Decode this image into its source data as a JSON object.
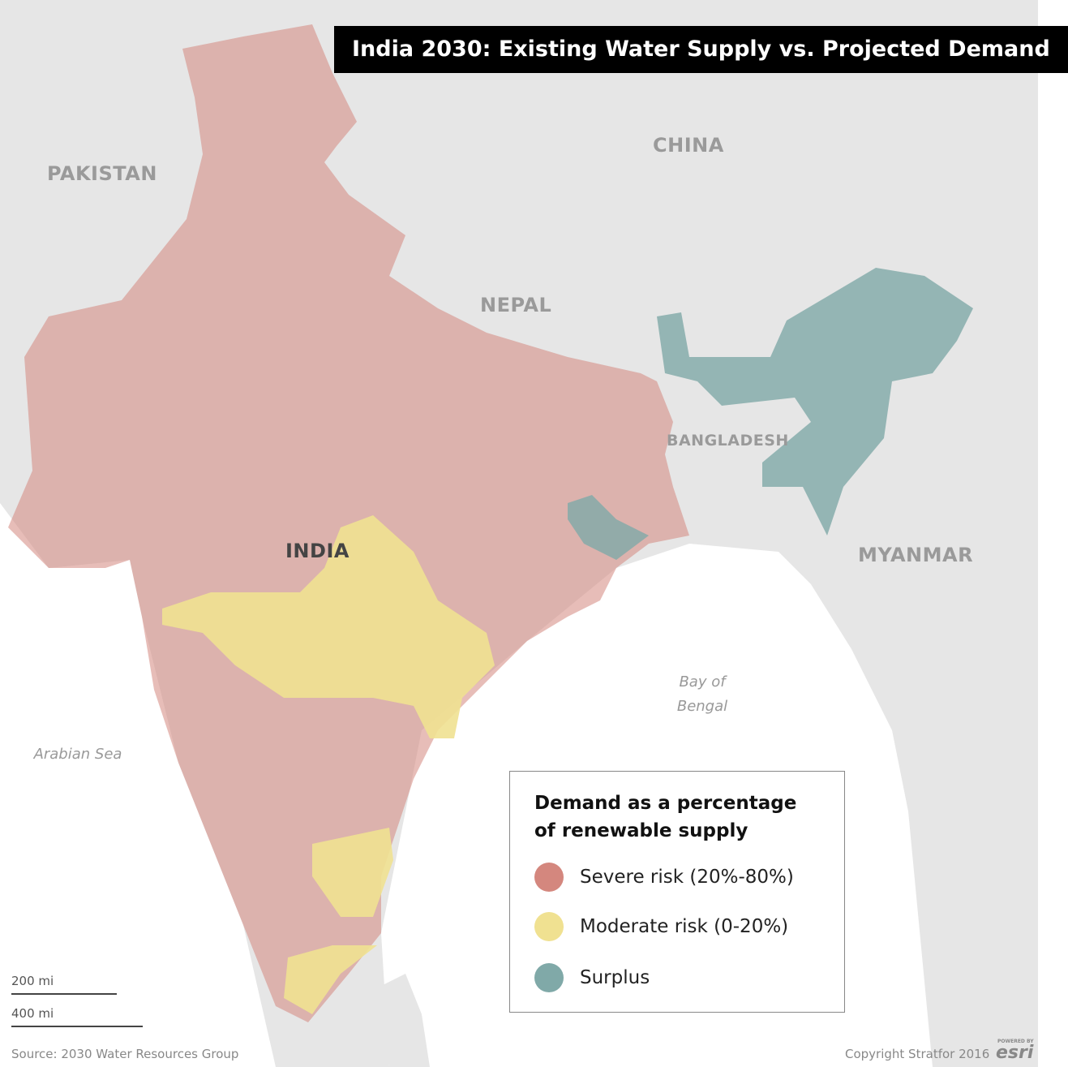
{
  "title": "India 2030: Existing Water Supply vs. Projected Demand",
  "labels": {
    "countries": [
      "PAKISTAN",
      "CHINA",
      "NEPAL",
      "BANGLADESH",
      "INDIA",
      "MYANMAR"
    ],
    "seas": [
      "Arabian Sea",
      "Bay of Bengal"
    ]
  },
  "legend": {
    "title": "Demand as a percentage of renewable supply",
    "items": [
      {
        "label": "Severe risk (20%-80%)",
        "color": "#d4877e"
      },
      {
        "label": "Moderate risk (0-20%)",
        "color": "#f0e191"
      },
      {
        "label": "Surplus",
        "color": "#80a9a8"
      }
    ]
  },
  "scale": [
    "200 mi",
    "400 mi"
  ],
  "footer": {
    "source": "Source: 2030 Water Resources Group",
    "copyright": "Copyright Stratfor 2016",
    "logo_top": "POWERED BY",
    "logo": "esri"
  }
}
